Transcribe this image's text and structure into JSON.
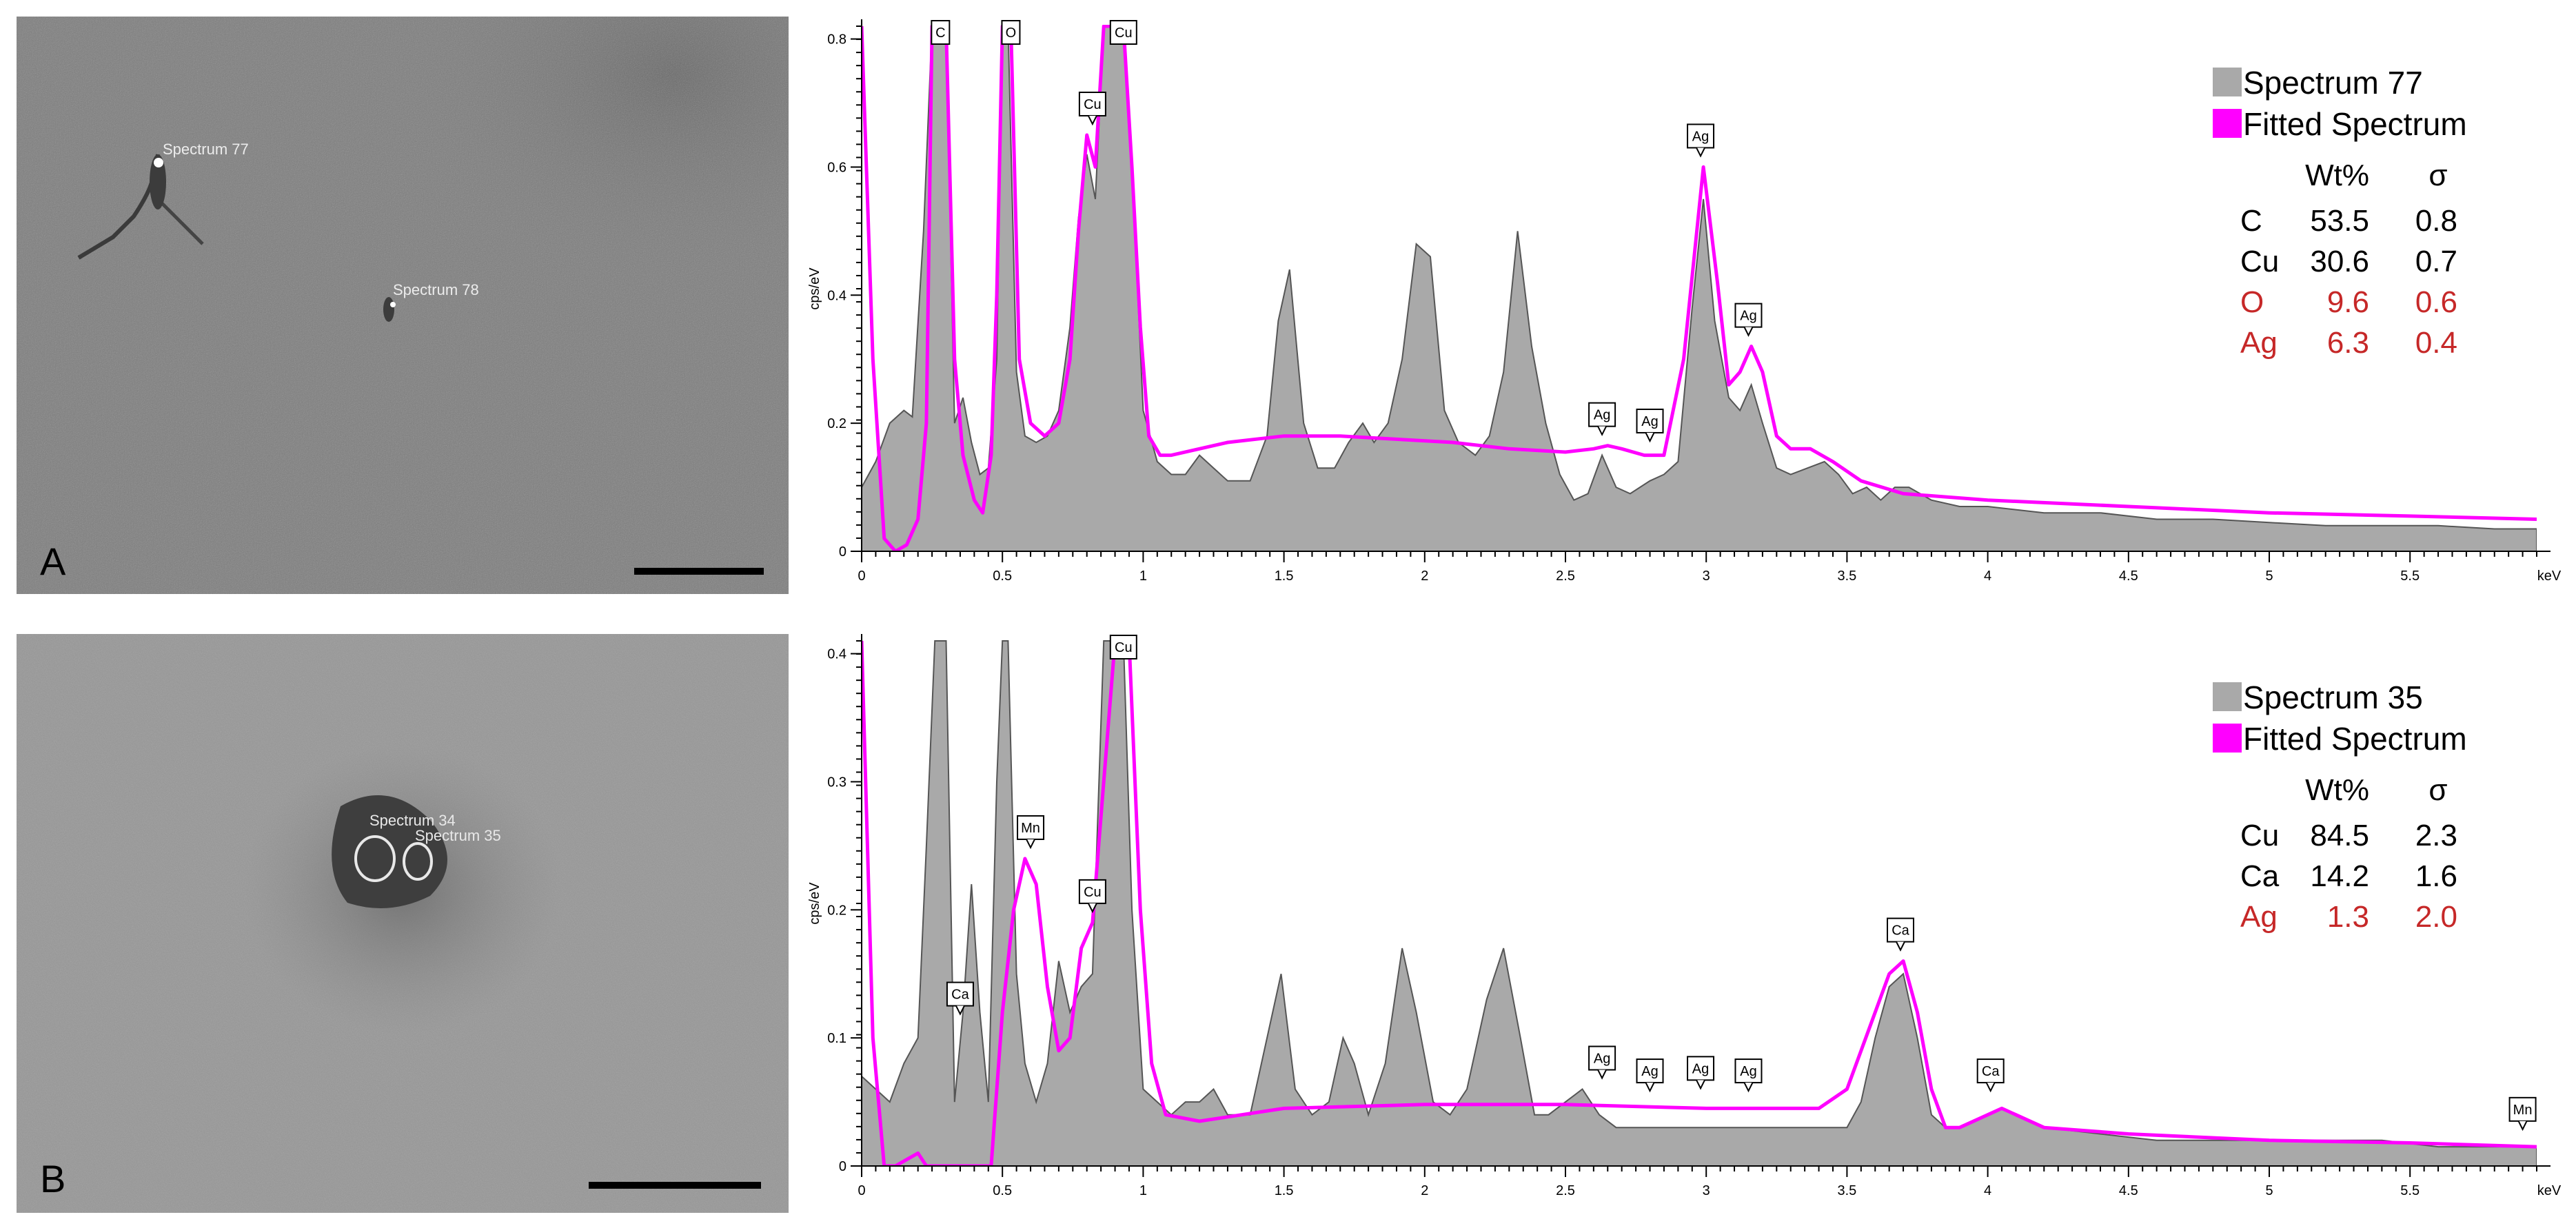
{
  "panels": [
    {
      "letter": "A",
      "spot_labels": [
        "Spectrum 77",
        "Spectrum 78"
      ]
    },
    {
      "letter": "B",
      "spot_labels": [
        "Spectrum 34",
        "Spectrum 35"
      ]
    }
  ],
  "colors": {
    "measured": "#a9a9a9",
    "measured_outline": "#555555",
    "fitted": "#ff00ff",
    "minor_element": "#c62828",
    "axis": "#000000"
  },
  "chart_data": [
    {
      "type": "area",
      "ylabel": "cps/eV",
      "xlabel": "keV",
      "xlim": [
        0,
        5.95
      ],
      "ylim": [
        0,
        0.82
      ],
      "x_ticks": [
        0,
        0.5,
        1,
        1.5,
        2,
        2.5,
        3,
        3.5,
        4,
        4.5,
        5,
        5.5
      ],
      "x_tick_labels": [
        "0",
        "0.5",
        "1",
        "1.5",
        "2",
        "2.5",
        "3",
        "3.5",
        "4",
        "4.5",
        "5",
        "5.5"
      ],
      "y_ticks": [
        0,
        0.2,
        0.4,
        0.6,
        0.8
      ],
      "y_tick_labels": [
        "0",
        "0.2",
        "0.4",
        "0.6",
        "0.8"
      ],
      "series": [
        {
          "name": "Spectrum 77",
          "x": [
            0.0,
            0.05,
            0.1,
            0.15,
            0.18,
            0.22,
            0.25,
            0.27,
            0.3,
            0.33,
            0.36,
            0.39,
            0.42,
            0.45,
            0.48,
            0.5,
            0.52,
            0.55,
            0.58,
            0.62,
            0.66,
            0.7,
            0.74,
            0.77,
            0.8,
            0.83,
            0.86,
            0.9,
            0.93,
            0.96,
            1.0,
            1.05,
            1.1,
            1.15,
            1.2,
            1.25,
            1.3,
            1.38,
            1.44,
            1.48,
            1.52,
            1.57,
            1.62,
            1.68,
            1.73,
            1.78,
            1.82,
            1.87,
            1.92,
            1.97,
            2.02,
            2.07,
            2.12,
            2.18,
            2.23,
            2.28,
            2.33,
            2.38,
            2.43,
            2.48,
            2.53,
            2.58,
            2.63,
            2.68,
            2.73,
            2.8,
            2.85,
            2.9,
            2.95,
            2.99,
            3.03,
            3.08,
            3.12,
            3.16,
            3.2,
            3.25,
            3.3,
            3.36,
            3.42,
            3.47,
            3.52,
            3.57,
            3.62,
            3.67,
            3.72,
            3.8,
            3.9,
            4.0,
            4.2,
            4.4,
            4.6,
            4.8,
            5.0,
            5.2,
            5.4,
            5.6,
            5.8,
            5.95
          ],
          "y": [
            0.1,
            0.14,
            0.2,
            0.22,
            0.21,
            0.5,
            0.82,
            0.82,
            0.82,
            0.2,
            0.24,
            0.17,
            0.12,
            0.13,
            0.3,
            0.82,
            0.82,
            0.28,
            0.18,
            0.17,
            0.18,
            0.22,
            0.35,
            0.52,
            0.62,
            0.55,
            0.82,
            0.82,
            0.82,
            0.6,
            0.22,
            0.14,
            0.12,
            0.12,
            0.15,
            0.13,
            0.11,
            0.11,
            0.18,
            0.36,
            0.44,
            0.2,
            0.13,
            0.13,
            0.17,
            0.2,
            0.17,
            0.2,
            0.3,
            0.48,
            0.46,
            0.22,
            0.17,
            0.15,
            0.18,
            0.28,
            0.5,
            0.32,
            0.2,
            0.12,
            0.08,
            0.09,
            0.15,
            0.1,
            0.09,
            0.11,
            0.12,
            0.14,
            0.38,
            0.55,
            0.36,
            0.24,
            0.22,
            0.26,
            0.2,
            0.13,
            0.12,
            0.13,
            0.14,
            0.12,
            0.09,
            0.1,
            0.08,
            0.1,
            0.1,
            0.08,
            0.07,
            0.07,
            0.06,
            0.06,
            0.05,
            0.05,
            0.045,
            0.04,
            0.04,
            0.04,
            0.035,
            0.035
          ]
        },
        {
          "name": "Fitted Spectrum",
          "x": [
            0.0,
            0.04,
            0.08,
            0.12,
            0.16,
            0.2,
            0.23,
            0.25,
            0.3,
            0.33,
            0.36,
            0.4,
            0.43,
            0.46,
            0.48,
            0.5,
            0.53,
            0.56,
            0.6,
            0.65,
            0.7,
            0.74,
            0.77,
            0.8,
            0.83,
            0.86,
            0.89,
            0.93,
            0.96,
            0.99,
            1.02,
            1.06,
            1.1,
            1.3,
            1.5,
            1.7,
            1.9,
            2.1,
            2.3,
            2.5,
            2.6,
            2.65,
            2.7,
            2.78,
            2.85,
            2.92,
            2.99,
            3.04,
            3.08,
            3.12,
            3.16,
            3.2,
            3.25,
            3.3,
            3.37,
            3.45,
            3.55,
            3.7,
            4.0,
            4.5,
            5.0,
            5.5,
            5.95
          ],
          "y": [
            0.82,
            0.3,
            0.02,
            0.0,
            0.01,
            0.05,
            0.2,
            0.82,
            0.82,
            0.3,
            0.15,
            0.08,
            0.06,
            0.15,
            0.4,
            0.82,
            0.82,
            0.3,
            0.2,
            0.18,
            0.2,
            0.3,
            0.5,
            0.65,
            0.6,
            0.82,
            0.82,
            0.82,
            0.6,
            0.35,
            0.18,
            0.15,
            0.15,
            0.17,
            0.18,
            0.18,
            0.175,
            0.17,
            0.16,
            0.155,
            0.16,
            0.165,
            0.16,
            0.15,
            0.15,
            0.3,
            0.6,
            0.42,
            0.26,
            0.28,
            0.32,
            0.28,
            0.18,
            0.16,
            0.16,
            0.14,
            0.11,
            0.09,
            0.08,
            0.07,
            0.06,
            0.055,
            0.05
          ]
        }
      ],
      "peak_labels": [
        {
          "text": "C",
          "x": 0.28,
          "y": 0.82
        },
        {
          "text": "O",
          "x": 0.53,
          "y": 0.82
        },
        {
          "text": "Cu",
          "x": 0.93,
          "y": 0.82
        },
        {
          "text": "Cu",
          "x": 0.82,
          "y": 0.65
        },
        {
          "text": "Ag",
          "x": 2.98,
          "y": 0.6
        },
        {
          "text": "Ag",
          "x": 3.15,
          "y": 0.32
        },
        {
          "text": "Ag",
          "x": 2.63,
          "y": 0.165
        },
        {
          "text": "Ag",
          "x": 2.8,
          "y": 0.155
        }
      ],
      "legend": {
        "measured_label": "Spectrum 77",
        "fitted_label": "Fitted Spectrum",
        "col_headers": [
          "Wt%",
          "σ"
        ],
        "rows": [
          {
            "element": "C",
            "wt": "53.5",
            "sigma": "0.8",
            "highlight": false
          },
          {
            "element": "Cu",
            "wt": "30.6",
            "sigma": "0.7",
            "highlight": false
          },
          {
            "element": "O",
            "wt": "9.6",
            "sigma": "0.6",
            "highlight": true
          },
          {
            "element": "Ag",
            "wt": "6.3",
            "sigma": "0.4",
            "highlight": true
          }
        ]
      }
    },
    {
      "type": "area",
      "ylabel": "cps/eV",
      "xlabel": "keV",
      "xlim": [
        0,
        5.95
      ],
      "ylim": [
        0,
        0.41
      ],
      "x_ticks": [
        0,
        0.5,
        1,
        1.5,
        2,
        2.5,
        3,
        3.5,
        4,
        4.5,
        5,
        5.5
      ],
      "x_tick_labels": [
        "0",
        "0.5",
        "1",
        "1.5",
        "2",
        "2.5",
        "3",
        "3.5",
        "4",
        "4.5",
        "5",
        "5.5"
      ],
      "y_ticks": [
        0,
        0.1,
        0.2,
        0.3,
        0.4
      ],
      "y_tick_labels": [
        "0",
        "0.1",
        "0.2",
        "0.3",
        "0.4"
      ],
      "series": [
        {
          "name": "Spectrum 35",
          "x": [
            0.0,
            0.05,
            0.1,
            0.15,
            0.2,
            0.23,
            0.26,
            0.3,
            0.33,
            0.36,
            0.39,
            0.42,
            0.45,
            0.48,
            0.5,
            0.52,
            0.55,
            0.58,
            0.62,
            0.66,
            0.7,
            0.74,
            0.78,
            0.82,
            0.86,
            0.9,
            0.93,
            0.96,
            1.0,
            1.05,
            1.1,
            1.15,
            1.2,
            1.25,
            1.3,
            1.38,
            1.44,
            1.49,
            1.54,
            1.6,
            1.66,
            1.71,
            1.75,
            1.8,
            1.86,
            1.92,
            1.97,
            2.03,
            2.09,
            2.15,
            2.22,
            2.28,
            2.34,
            2.39,
            2.44,
            2.5,
            2.56,
            2.62,
            2.68,
            2.74,
            2.82,
            2.9,
            3.0,
            3.1,
            3.2,
            3.3,
            3.4,
            3.5,
            3.55,
            3.6,
            3.65,
            3.7,
            3.75,
            3.8,
            3.85,
            3.9,
            4.0,
            4.05,
            4.1,
            4.2,
            4.4,
            4.6,
            4.8,
            5.0,
            5.2,
            5.4,
            5.6,
            5.8,
            5.95
          ],
          "y": [
            0.07,
            0.06,
            0.05,
            0.08,
            0.1,
            0.25,
            0.41,
            0.41,
            0.05,
            0.12,
            0.22,
            0.12,
            0.05,
            0.3,
            0.41,
            0.41,
            0.15,
            0.08,
            0.05,
            0.08,
            0.16,
            0.12,
            0.14,
            0.15,
            0.41,
            0.41,
            0.41,
            0.2,
            0.06,
            0.05,
            0.04,
            0.05,
            0.05,
            0.06,
            0.04,
            0.04,
            0.1,
            0.15,
            0.06,
            0.04,
            0.05,
            0.1,
            0.08,
            0.04,
            0.08,
            0.17,
            0.12,
            0.05,
            0.04,
            0.06,
            0.13,
            0.17,
            0.1,
            0.04,
            0.04,
            0.05,
            0.06,
            0.04,
            0.03,
            0.03,
            0.03,
            0.03,
            0.03,
            0.03,
            0.03,
            0.03,
            0.03,
            0.03,
            0.05,
            0.1,
            0.14,
            0.15,
            0.1,
            0.04,
            0.03,
            0.03,
            0.04,
            0.045,
            0.04,
            0.03,
            0.025,
            0.02,
            0.02,
            0.02,
            0.02,
            0.02,
            0.015,
            0.015,
            0.015
          ]
        },
        {
          "name": "Fitted Spectrum",
          "x": [
            0.0,
            0.04,
            0.08,
            0.12,
            0.16,
            0.2,
            0.23,
            0.26,
            0.3,
            0.36,
            0.42,
            0.46,
            0.5,
            0.54,
            0.58,
            0.62,
            0.66,
            0.7,
            0.74,
            0.78,
            0.82,
            0.86,
            0.9,
            0.95,
            0.99,
            1.03,
            1.08,
            1.2,
            1.5,
            2.0,
            2.5,
            3.0,
            3.2,
            3.4,
            3.5,
            3.6,
            3.65,
            3.7,
            3.75,
            3.8,
            3.85,
            3.9,
            4.0,
            4.05,
            4.1,
            4.2,
            4.5,
            5.0,
            5.5,
            5.95
          ],
          "y": [
            0.41,
            0.1,
            0.0,
            0.0,
            0.005,
            0.01,
            0.0,
            0.0,
            0.0,
            0.0,
            0.0,
            0.0,
            0.12,
            0.2,
            0.24,
            0.22,
            0.14,
            0.09,
            0.1,
            0.17,
            0.19,
            0.3,
            0.41,
            0.41,
            0.2,
            0.08,
            0.04,
            0.035,
            0.045,
            0.048,
            0.048,
            0.045,
            0.045,
            0.045,
            0.06,
            0.12,
            0.15,
            0.16,
            0.12,
            0.06,
            0.03,
            0.03,
            0.04,
            0.045,
            0.04,
            0.03,
            0.025,
            0.02,
            0.018,
            0.015
          ]
        }
      ],
      "peak_labels": [
        {
          "text": "Cu",
          "x": 0.93,
          "y": 0.41
        },
        {
          "text": "Mn",
          "x": 0.6,
          "y": 0.24
        },
        {
          "text": "Cu",
          "x": 0.82,
          "y": 0.19
        },
        {
          "text": "Ca",
          "x": 0.35,
          "y": 0.11
        },
        {
          "text": "Ca",
          "x": 3.69,
          "y": 0.16
        },
        {
          "text": "Ca",
          "x": 4.01,
          "y": 0.05
        },
        {
          "text": "Ag",
          "x": 2.63,
          "y": 0.06
        },
        {
          "text": "Ag",
          "x": 2.8,
          "y": 0.05
        },
        {
          "text": "Ag",
          "x": 2.98,
          "y": 0.052
        },
        {
          "text": "Ag",
          "x": 3.15,
          "y": 0.05
        },
        {
          "text": "Mn",
          "x": 5.9,
          "y": 0.02
        }
      ],
      "legend": {
        "measured_label": "Spectrum 35",
        "fitted_label": "Fitted Spectrum",
        "col_headers": [
          "Wt%",
          "σ"
        ],
        "rows": [
          {
            "element": "Cu",
            "wt": "84.5",
            "sigma": "2.3",
            "highlight": false
          },
          {
            "element": "Ca",
            "wt": "14.2",
            "sigma": "1.6",
            "highlight": false
          },
          {
            "element": "Ag",
            "wt": "1.3",
            "sigma": "2.0",
            "highlight": true
          }
        ]
      }
    }
  ]
}
